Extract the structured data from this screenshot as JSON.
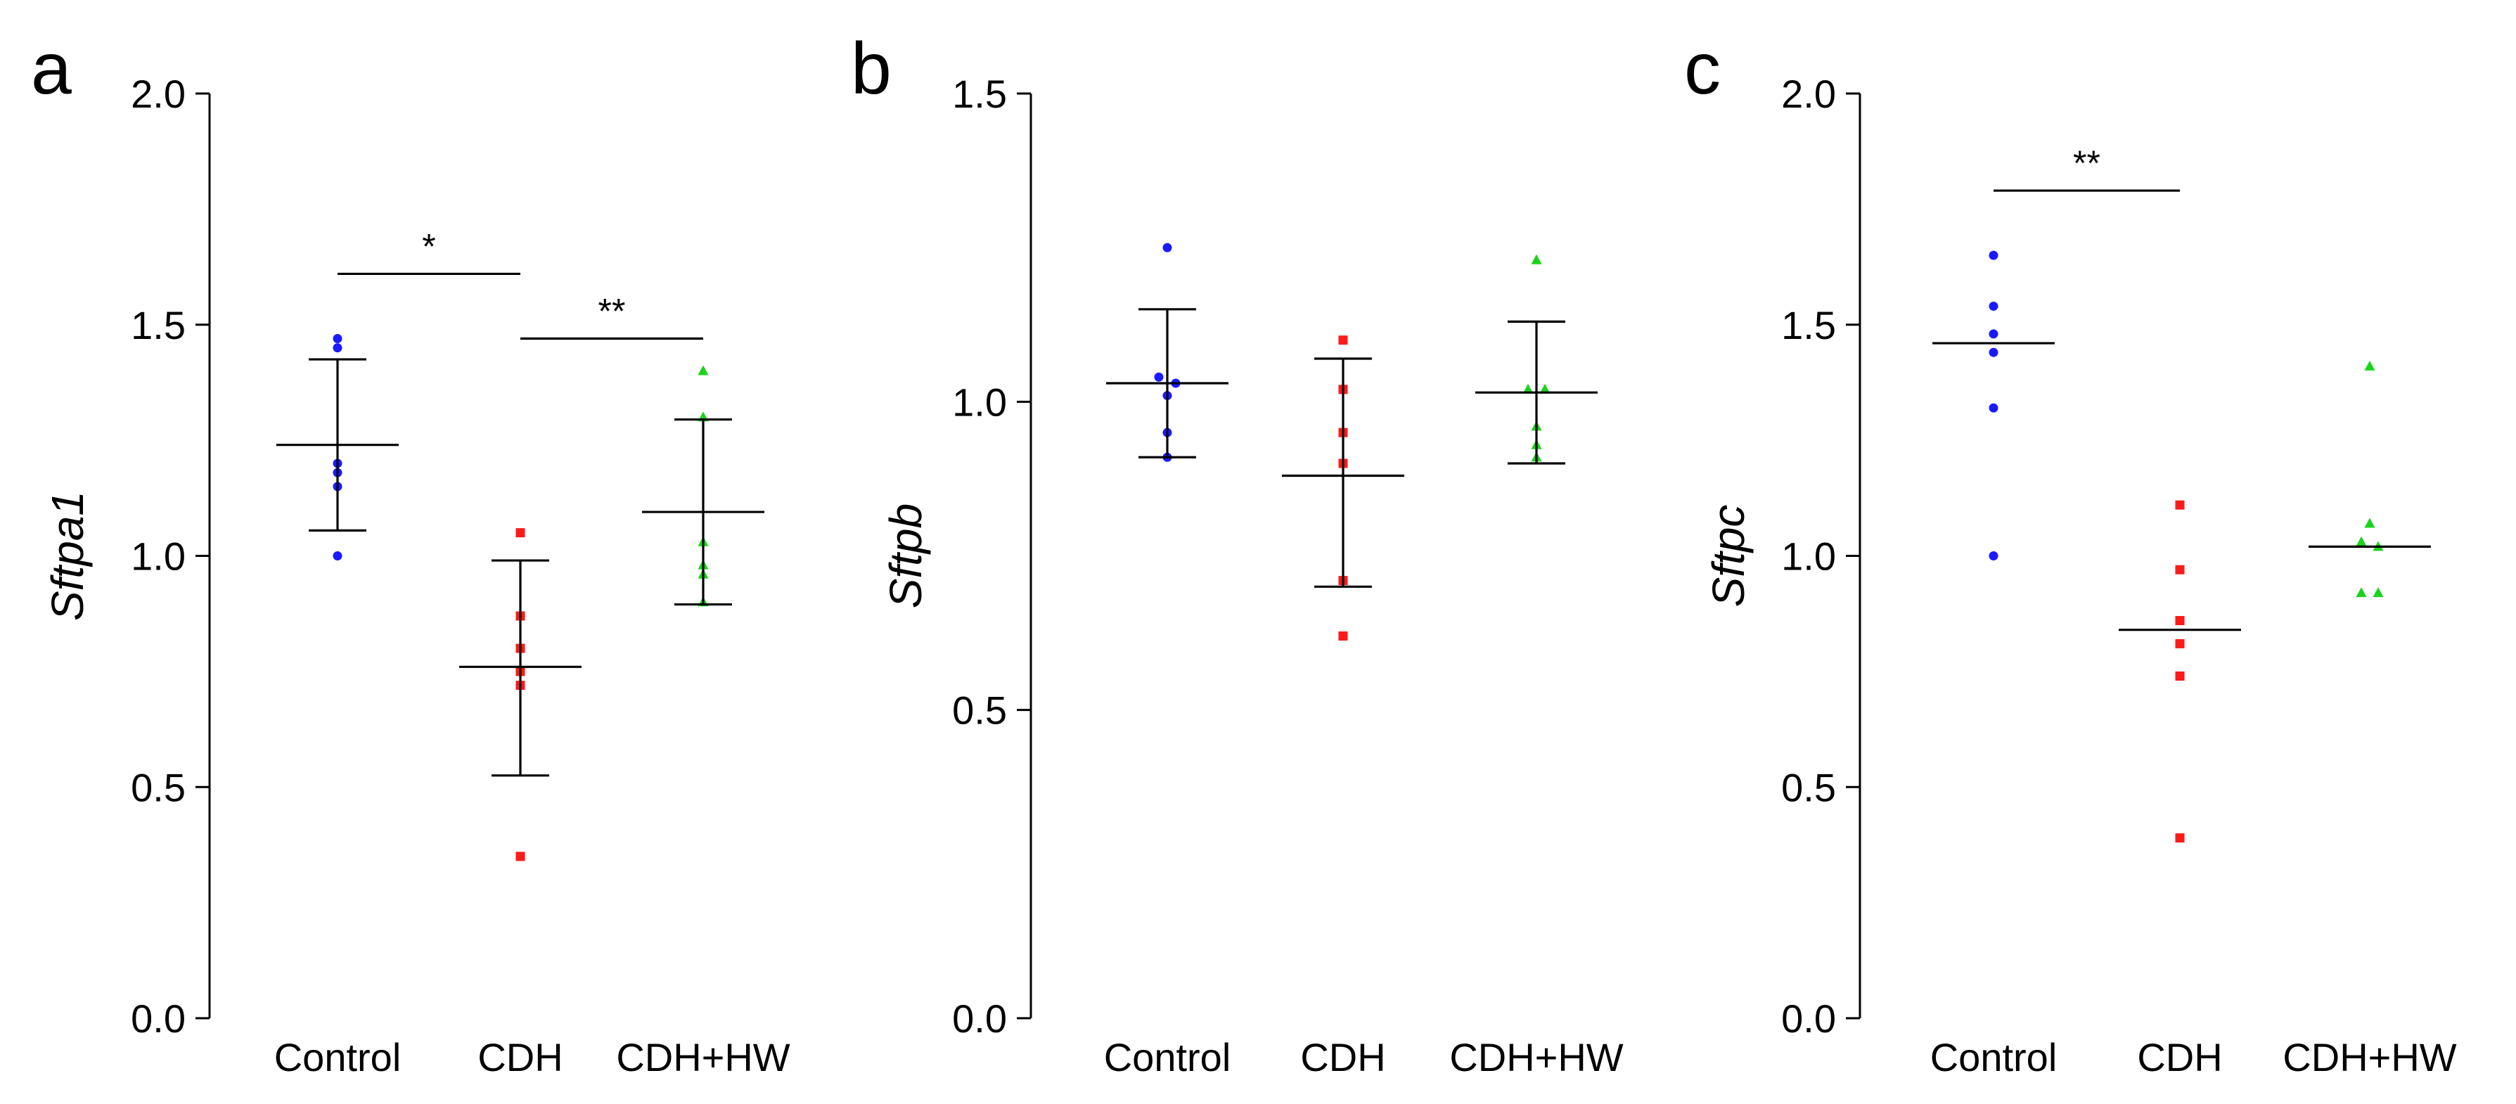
{
  "colors": {
    "Control": "#1a1aff",
    "CDH": "#ff1a1a",
    "CDH+HW": "#1ad41a",
    "axis": "#000000"
  },
  "chart_data": [
    {
      "type": "scatter",
      "panel": "a",
      "ylabel": "Sftpa1",
      "ylim": [
        0,
        2.0
      ],
      "yticks": [
        0.0,
        0.5,
        1.0,
        1.5,
        2.0
      ],
      "ytick_labels": [
        "0.0",
        "0.5",
        "1.0",
        "1.5",
        "2.0"
      ],
      "categories": [
        "Control",
        "CDH",
        "CDH+HW"
      ],
      "markers": [
        "circle",
        "square",
        "triangle"
      ],
      "points": [
        [
          1.47,
          1.45,
          1.2,
          1.18,
          1.15,
          1.0
        ],
        [
          1.05,
          0.87,
          0.8,
          0.75,
          0.72,
          0.35
        ],
        [
          1.4,
          1.3,
          1.03,
          0.98,
          0.96,
          0.9
        ]
      ],
      "summary": [
        {
          "center": 1.24,
          "low": 1.055,
          "high": 1.425
        },
        {
          "center": 0.76,
          "low": 0.525,
          "high": 0.99
        },
        {
          "center": 1.095,
          "low": 0.895,
          "high": 1.295
        }
      ],
      "significance": [
        {
          "from": "Control",
          "to": "CDH",
          "level": 1.61,
          "label": "*"
        },
        {
          "from": "CDH",
          "to": "CDH+HW",
          "level": 1.47,
          "label": "**"
        }
      ]
    },
    {
      "type": "scatter",
      "panel": "b",
      "ylabel": "Sftpb",
      "ylim": [
        0,
        1.5
      ],
      "yticks": [
        0.0,
        0.5,
        1.0,
        1.5
      ],
      "ytick_labels": [
        "0.0",
        "0.5",
        "1.0",
        "1.5"
      ],
      "categories": [
        "Control",
        "CDH",
        "CDH+HW"
      ],
      "markers": [
        "circle",
        "square",
        "triangle"
      ],
      "points": [
        [
          1.25,
          1.04,
          1.03,
          1.01,
          0.95,
          0.91
        ],
        [
          1.1,
          1.02,
          0.95,
          0.9,
          0.71,
          0.62
        ],
        [
          1.23,
          1.02,
          1.02,
          0.96,
          0.93,
          0.91
        ]
      ],
      "summary": [
        {
          "center": 1.03,
          "low": 0.91,
          "high": 1.15
        },
        {
          "center": 0.88,
          "low": 0.7,
          "high": 1.07
        },
        {
          "center": 1.015,
          "low": 0.9,
          "high": 1.13
        }
      ],
      "significance": []
    },
    {
      "type": "scatter",
      "panel": "c",
      "ylabel": "Sftpc",
      "ylim": [
        0,
        2.0
      ],
      "yticks": [
        0.0,
        0.5,
        1.0,
        1.5,
        2.0
      ],
      "ytick_labels": [
        "0.0",
        "0.5",
        "1.0",
        "1.5",
        "2.0"
      ],
      "categories": [
        "Control",
        "CDH",
        "CDH+HW"
      ],
      "markers": [
        "circle",
        "square",
        "triangle"
      ],
      "points": [
        [
          1.65,
          1.54,
          1.48,
          1.44,
          1.32,
          1.0
        ],
        [
          1.11,
          0.97,
          0.86,
          0.81,
          0.74,
          0.39
        ],
        [
          1.41,
          1.07,
          1.03,
          1.02,
          0.92,
          0.92
        ]
      ],
      "summary": [
        {
          "center": 1.46
        },
        {
          "center": 0.84
        },
        {
          "center": 1.02
        }
      ],
      "significance": [
        {
          "from": "Control",
          "to": "CDH",
          "level": 1.79,
          "label": "**"
        }
      ]
    }
  ]
}
